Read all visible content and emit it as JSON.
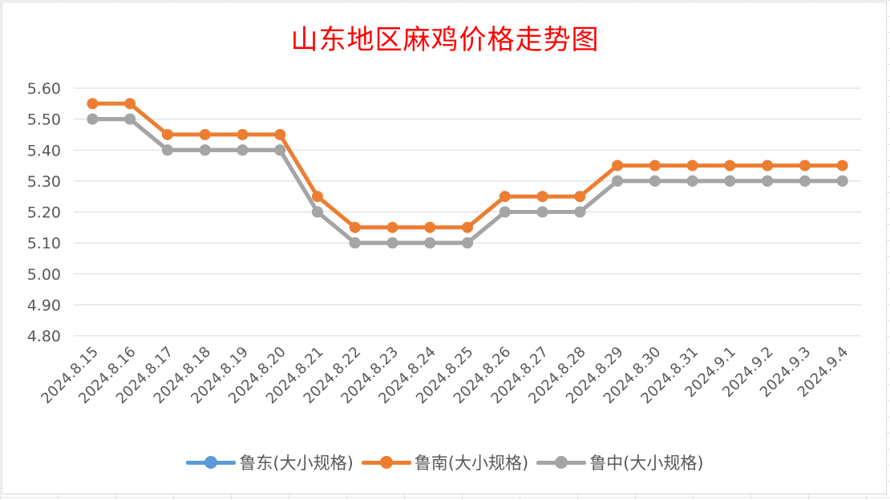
{
  "chart_data": {
    "type": "line",
    "title": "山东地区麻鸡价格走势图",
    "xlabel": "",
    "ylabel": "",
    "x": [
      "2024.8.15",
      "2024.8.16",
      "2024.8.17",
      "2024.8.18",
      "2024.8.19",
      "2024.8.20",
      "2024.8.21",
      "2024.8.22",
      "2024.8.23",
      "2024.8.24",
      "2024.8.25",
      "2024.8.26",
      "2024.8.27",
      "2024.8.28",
      "2024.8.29",
      "2024.8.30",
      "2024.8.31",
      "2024.9.1",
      "2024.9.2",
      "2024.9.3",
      "2024.9.4"
    ],
    "y_ticks": [
      "4.80",
      "4.90",
      "5.00",
      "5.10",
      "5.20",
      "5.30",
      "5.40",
      "5.50",
      "5.60"
    ],
    "ylim": [
      4.8,
      5.6
    ],
    "grid": "horizontal",
    "legend_position": "bottom",
    "series": [
      {
        "name": "鲁东(大小规格)",
        "color": "#5b9bd5",
        "values": [
          5.5,
          5.5,
          5.4,
          5.4,
          5.4,
          5.4,
          5.2,
          5.1,
          5.1,
          5.1,
          5.1,
          5.2,
          5.2,
          5.2,
          5.3,
          5.3,
          5.3,
          5.3,
          5.3,
          5.3,
          5.3
        ]
      },
      {
        "name": "鲁南(大小规格)",
        "color": "#ed7d31",
        "values": [
          5.55,
          5.55,
          5.45,
          5.45,
          5.45,
          5.45,
          5.25,
          5.15,
          5.15,
          5.15,
          5.15,
          5.25,
          5.25,
          5.25,
          5.35,
          5.35,
          5.35,
          5.35,
          5.35,
          5.35,
          5.35
        ]
      },
      {
        "name": "鲁中(大小规格)",
        "color": "#a5a5a5",
        "values": [
          5.5,
          5.5,
          5.4,
          5.4,
          5.4,
          5.4,
          5.2,
          5.1,
          5.1,
          5.1,
          5.1,
          5.2,
          5.2,
          5.2,
          5.3,
          5.3,
          5.3,
          5.3,
          5.3,
          5.3,
          5.3
        ]
      }
    ]
  }
}
